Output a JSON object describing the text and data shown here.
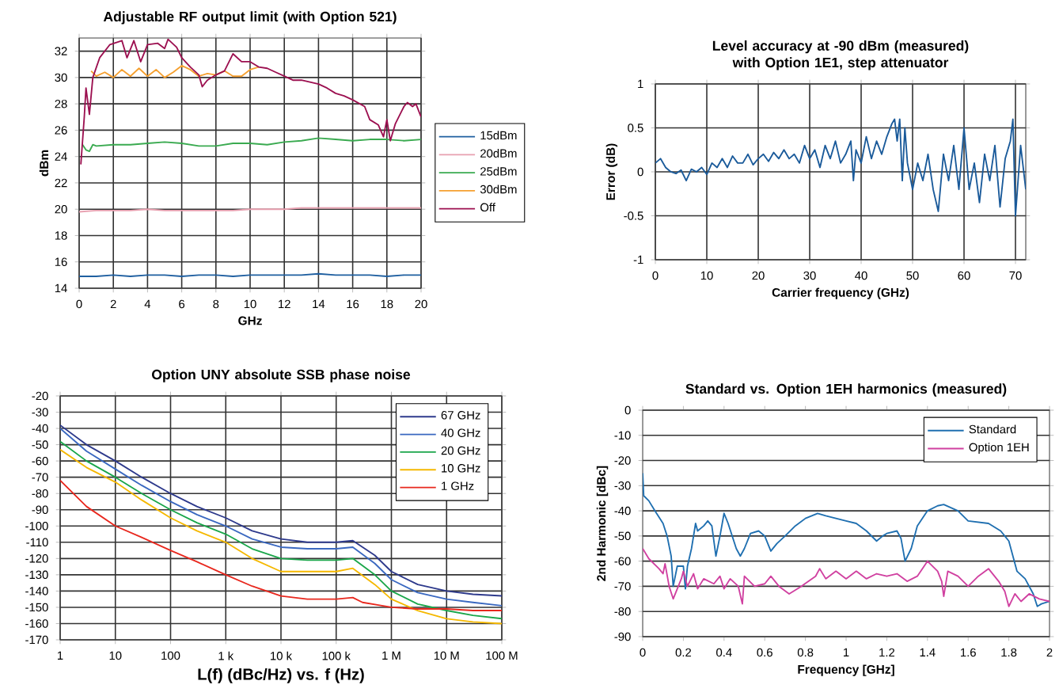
{
  "chart_data": [
    {
      "type": "line",
      "title": "Adjustable RF output limit (with Option 521)",
      "xlabel": "GHz",
      "ylabel": "dBm",
      "xlim": [
        0,
        20
      ],
      "ylim": [
        14,
        33
      ],
      "xticks": [
        0,
        2,
        4,
        6,
        8,
        10,
        12,
        14,
        16,
        18,
        20
      ],
      "yticks": [
        14,
        16,
        18,
        20,
        22,
        24,
        26,
        28,
        30,
        32
      ],
      "grid": true,
      "legend": "right",
      "series": [
        {
          "name": "15dBm",
          "color": "#1f5fa0",
          "x": [
            0,
            1,
            2,
            3,
            4,
            5,
            6,
            7,
            8,
            9,
            10,
            11,
            12,
            13,
            14,
            15,
            16,
            17,
            18,
            19,
            20
          ],
          "values": [
            14.9,
            14.9,
            15,
            14.9,
            15,
            15,
            14.9,
            15,
            15,
            14.9,
            15,
            15,
            15,
            15,
            15.1,
            15,
            15,
            15,
            14.9,
            15,
            15
          ]
        },
        {
          "name": "20dBm",
          "color": "#e8a0b0",
          "x": [
            0,
            1,
            2,
            3,
            4,
            5,
            6,
            7,
            8,
            9,
            10,
            11,
            12,
            13,
            14,
            15,
            16,
            17,
            18,
            19,
            20
          ],
          "values": [
            19.8,
            19.9,
            19.9,
            19.9,
            20,
            19.9,
            19.9,
            19.9,
            19.9,
            19.9,
            20,
            20,
            20,
            20.1,
            20.1,
            20.1,
            20.1,
            20.1,
            20.1,
            20.1,
            20.1
          ]
        },
        {
          "name": "25dBm",
          "color": "#3aaa50",
          "x": [
            0.2,
            0.4,
            0.6,
            0.8,
            1,
            2,
            3,
            4,
            5,
            6,
            7,
            8,
            9,
            10,
            11,
            12,
            13,
            14,
            15,
            16,
            17,
            18,
            19,
            20
          ],
          "values": [
            24.9,
            24.5,
            24.4,
            24.9,
            24.8,
            24.9,
            24.9,
            25,
            25.1,
            25,
            24.8,
            24.8,
            25,
            25,
            24.9,
            25.1,
            25.2,
            25.4,
            25.3,
            25.2,
            25.3,
            25.3,
            25.2,
            25.3
          ]
        },
        {
          "name": "30dBm",
          "color": "#f5a030",
          "x": [
            0.7,
            1,
            1.5,
            2,
            2.5,
            3,
            3.5,
            4,
            4.5,
            5,
            5.5,
            6,
            6.5,
            7,
            7.5,
            8,
            8.5,
            9,
            9.5,
            10,
            10.5
          ],
          "values": [
            30.5,
            30.1,
            30.4,
            30.0,
            30.6,
            30.1,
            30.7,
            30.1,
            30.6,
            30.0,
            30.4,
            30.9,
            30.6,
            30.1,
            30.3,
            30.2,
            30.5,
            30.1,
            30.1,
            30.6,
            30.8
          ]
        },
        {
          "name": "Off",
          "color": "#9c1050",
          "x": [
            0.1,
            0.3,
            0.4,
            0.6,
            0.8,
            1.2,
            1.8,
            2.5,
            2.8,
            3.2,
            3.6,
            4,
            4.6,
            5,
            5.2,
            5.7,
            6,
            6.5,
            7,
            7.2,
            7.5,
            8,
            8.5,
            9,
            9.5,
            10,
            10.5,
            11,
            11.5,
            12,
            12.5,
            13,
            14,
            14.5,
            15,
            15.5,
            16,
            16.7,
            17,
            17.5,
            17.8,
            18,
            18.2,
            18.5,
            19,
            19.2,
            19.5,
            19.7,
            20
          ],
          "values": [
            23.4,
            27,
            29.2,
            27.2,
            30,
            31.5,
            32.5,
            32.8,
            31.5,
            32.8,
            31.2,
            32.5,
            32.6,
            32.2,
            32.9,
            32.3,
            31.5,
            30.8,
            30.2,
            29.3,
            29.8,
            30.2,
            30.5,
            31.8,
            31.2,
            31.2,
            30.8,
            30.7,
            30.4,
            30.1,
            29.8,
            29.8,
            29.5,
            29.2,
            28.8,
            28.6,
            28.3,
            27.8,
            26.8,
            26.4,
            25.5,
            26.8,
            25.2,
            26.5,
            27.8,
            28.1,
            27.8,
            28,
            27
          ]
        }
      ]
    },
    {
      "type": "line",
      "title": "Level accuracy at -90 dBm (measured) with Option 1E1, step attenuator",
      "xlabel": "Carrier frequency (GHz)",
      "ylabel": "Error (dB)",
      "xlim": [
        0,
        72
      ],
      "ylim": [
        -1,
        1
      ],
      "xticks": [
        0,
        10,
        20,
        30,
        40,
        50,
        60,
        70
      ],
      "yticks": [
        -1,
        -0.5,
        0,
        0.5,
        1
      ],
      "grid": true,
      "series": [
        {
          "color": "#1a5a9a",
          "x": [
            0,
            1,
            2,
            3,
            4,
            5,
            6,
            7,
            8,
            9,
            10,
            11,
            12,
            13,
            14,
            15,
            16,
            17,
            18,
            19,
            20,
            21,
            22,
            23,
            24,
            25,
            26,
            27,
            28,
            29,
            30,
            31,
            32,
            33,
            34,
            35,
            36,
            37,
            38,
            38.5,
            39,
            40,
            41,
            42,
            43,
            44,
            45,
            46,
            46.5,
            47,
            47.5,
            48,
            48.5,
            49,
            50,
            51,
            52,
            53,
            54,
            55,
            56,
            57,
            58,
            59,
            60,
            61,
            62,
            63,
            64,
            65,
            66,
            67,
            68,
            69,
            69.5,
            70,
            71,
            72
          ],
          "values": [
            0.1,
            0.15,
            0.05,
            0,
            -0.02,
            0.02,
            -0.1,
            0.03,
            0,
            0.05,
            -0.03,
            0.1,
            0.05,
            0.15,
            0.05,
            0.18,
            0.1,
            0.1,
            0.2,
            0.08,
            0.15,
            0.2,
            0.12,
            0.22,
            0.15,
            0.25,
            0.15,
            0.2,
            0.1,
            0.3,
            0.15,
            0.25,
            0.05,
            0.3,
            0.15,
            0.35,
            0.1,
            0.2,
            0.35,
            -0.1,
            0.25,
            0.1,
            0.4,
            0.15,
            0.35,
            0.2,
            0.4,
            0.55,
            0.6,
            0.35,
            0.6,
            -0.1,
            0.5,
            0.1,
            -0.2,
            0.1,
            -0.1,
            0.2,
            -0.2,
            -0.45,
            0.2,
            -0.1,
            0.3,
            -0.2,
            0.5,
            -0.2,
            0.1,
            -0.35,
            0.2,
            -0.1,
            0.3,
            -0.4,
            0.15,
            0.35,
            0.6,
            -0.5,
            0.3,
            -0.2
          ]
        }
      ]
    },
    {
      "type": "line",
      "title": "Option UNY absolute SSB phase noise",
      "xlabel": "L(f) (dBc/Hz) vs. f (Hz)",
      "log": "x",
      "xlim": [
        1,
        100000000
      ],
      "ylim": [
        -170,
        -20
      ],
      "xticks": [
        1,
        10,
        100,
        {
          "value": 1000,
          "label": "1 k"
        },
        {
          "value": 10000,
          "label": "10 k"
        },
        {
          "value": 100000,
          "label": "100 k"
        },
        {
          "value": 1000000,
          "label": "1 M"
        },
        {
          "value": 10000000,
          "label": "10 M"
        },
        {
          "value": 100000000,
          "label": "100 M"
        }
      ],
      "yticks": [
        -170,
        -160,
        -150,
        -140,
        -130,
        -120,
        -110,
        -100,
        -90,
        -80,
        -70,
        -60,
        -50,
        -40,
        -30,
        -20
      ],
      "grid": true,
      "legend": "top right",
      "series": [
        {
          "name": "67 GHz",
          "color": "#2e3a8c",
          "x": [
            1,
            3,
            10,
            30,
            100,
            300,
            1000,
            3000,
            10000,
            30000,
            100000,
            200000,
            500000,
            1000000,
            3000000,
            10000000,
            30000000,
            100000000
          ],
          "values": [
            -38,
            -50,
            -60,
            -70,
            -80,
            -88,
            -95,
            -103,
            -108,
            -110,
            -110,
            -109,
            -118,
            -128,
            -136,
            -140,
            -142,
            -143
          ]
        },
        {
          "name": "40 GHz",
          "color": "#3a68c0",
          "x": [
            1,
            3,
            10,
            30,
            100,
            300,
            1000,
            3000,
            10000,
            30000,
            100000,
            200000,
            500000,
            1000000,
            3000000,
            10000000,
            30000000,
            100000000
          ],
          "values": [
            -40,
            -54,
            -65,
            -75,
            -85,
            -93,
            -100,
            -108,
            -113,
            -114,
            -114,
            -113,
            -123,
            -133,
            -141,
            -145,
            -147,
            -149
          ]
        },
        {
          "name": "20 GHz",
          "color": "#1aa64a",
          "x": [
            1,
            3,
            10,
            30,
            100,
            300,
            1000,
            3000,
            10000,
            30000,
            100000,
            200000,
            500000,
            1000000,
            3000000,
            10000000,
            30000000,
            100000000
          ],
          "values": [
            -48,
            -60,
            -70,
            -80,
            -90,
            -98,
            -105,
            -114,
            -120,
            -121,
            -121,
            -120,
            -130,
            -140,
            -148,
            -152,
            -155,
            -157
          ]
        },
        {
          "name": "10 GHz",
          "color": "#f5b800",
          "x": [
            1,
            3,
            10,
            30,
            100,
            300,
            1000,
            3000,
            10000,
            30000,
            100000,
            200000,
            500000,
            1000000,
            3000000,
            10000000,
            30000000,
            100000000
          ],
          "values": [
            -53,
            -64,
            -73,
            -84,
            -95,
            -103,
            -110,
            -120,
            -128,
            -128,
            -128,
            -126,
            -136,
            -145,
            -152,
            -157,
            -159,
            -160
          ]
        },
        {
          "name": "1 GHz",
          "color": "#e8281e",
          "x": [
            1,
            3,
            10,
            30,
            100,
            300,
            1000,
            3000,
            10000,
            30000,
            100000,
            200000,
            300000,
            1000000,
            3000000,
            10000000,
            30000000,
            100000000
          ],
          "values": [
            -72,
            -88,
            -100,
            -107,
            -115,
            -122,
            -130,
            -137,
            -143,
            -145,
            -145,
            -144,
            -147,
            -150,
            -151,
            -151,
            -152,
            -152
          ]
        }
      ]
    },
    {
      "type": "line",
      "title": "Standard vs. Option 1EH harmonics (measured)",
      "xlabel": "Frequency [GHz]",
      "ylabel": "2nd Harmonic [dBc]",
      "xlim": [
        0,
        2
      ],
      "ylim": [
        -90,
        0
      ],
      "xticks": [
        0,
        0.2,
        0.4,
        0.6,
        0.8,
        1,
        1.2,
        1.4,
        1.6,
        1.8,
        2
      ],
      "yticks": [
        -90,
        -80,
        -70,
        -60,
        -50,
        -40,
        -30,
        -20,
        -10,
        0
      ],
      "grid": "y",
      "legend": "top right",
      "series": [
        {
          "name": "Standard",
          "color": "#1f6fb0",
          "x": [
            0,
            0.005,
            0.03,
            0.06,
            0.1,
            0.12,
            0.14,
            0.15,
            0.17,
            0.2,
            0.21,
            0.22,
            0.24,
            0.26,
            0.27,
            0.3,
            0.32,
            0.34,
            0.36,
            0.38,
            0.4,
            0.42,
            0.46,
            0.48,
            0.5,
            0.53,
            0.57,
            0.6,
            0.62,
            0.63,
            0.66,
            0.7,
            0.75,
            0.8,
            0.86,
            0.9,
            1,
            1.05,
            1.1,
            1.15,
            1.18,
            1.2,
            1.25,
            1.27,
            1.29,
            1.32,
            1.35,
            1.4,
            1.45,
            1.48,
            1.55,
            1.6,
            1.7,
            1.76,
            1.8,
            1.84,
            1.88,
            1.92,
            1.94,
            1.96,
            2
          ],
          "values": [
            -25,
            -34,
            -36,
            -40,
            -45,
            -50,
            -58,
            -70,
            -62,
            -62,
            -71,
            -62,
            -55,
            -45,
            -48,
            -46,
            -44,
            -46,
            -58,
            -50,
            -41,
            -45,
            -55,
            -58,
            -55,
            -49,
            -48,
            -50,
            -54,
            -56,
            -53,
            -50,
            -46,
            -43,
            -41,
            -42,
            -44,
            -45,
            -48,
            -52,
            -50,
            -49,
            -48,
            -51,
            -60,
            -55,
            -46,
            -40,
            -38,
            -37.5,
            -40,
            -44,
            -45,
            -48,
            -52,
            -64,
            -67,
            -73,
            -78,
            -77,
            -76
          ]
        },
        {
          "name": "Option 1EH",
          "color": "#d040a0",
          "x": [
            0,
            0.03,
            0.08,
            0.1,
            0.11,
            0.13,
            0.15,
            0.17,
            0.19,
            0.2,
            0.22,
            0.25,
            0.27,
            0.3,
            0.35,
            0.38,
            0.4,
            0.43,
            0.47,
            0.49,
            0.5,
            0.55,
            0.6,
            0.63,
            0.67,
            0.72,
            0.78,
            0.85,
            0.87,
            0.9,
            0.95,
            1,
            1.05,
            1.1,
            1.15,
            1.2,
            1.25,
            1.3,
            1.35,
            1.4,
            1.45,
            1.47,
            1.48,
            1.5,
            1.55,
            1.6,
            1.65,
            1.7,
            1.75,
            1.78,
            1.8,
            1.83,
            1.86,
            1.9,
            1.95,
            2
          ],
          "values": [
            -55,
            -59,
            -63,
            -65,
            -61,
            -70,
            -75,
            -71,
            -67,
            -64,
            -70,
            -65,
            -71,
            -67,
            -69,
            -66,
            -71,
            -67,
            -70,
            -77,
            -66,
            -70,
            -69,
            -66,
            -70,
            -73,
            -70,
            -66,
            -63,
            -67,
            -64,
            -67,
            -64,
            -67,
            -65,
            -66,
            -65,
            -68,
            -66,
            -60,
            -64,
            -68,
            -74,
            -64,
            -66,
            -70,
            -66,
            -63,
            -68,
            -72,
            -78,
            -73,
            -76,
            -73,
            -75,
            -76
          ]
        }
      ]
    }
  ]
}
